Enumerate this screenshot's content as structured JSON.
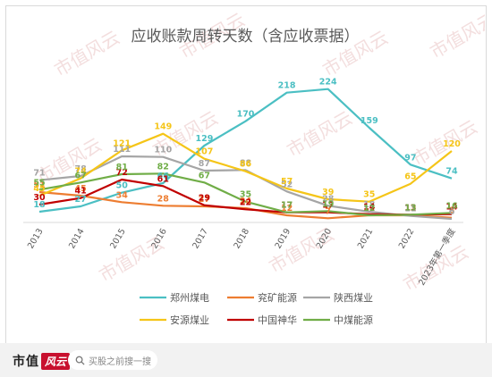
{
  "chart_data": {
    "type": "line",
    "title": "应收账款周转天数（含应收票据）",
    "categories": [
      "2013",
      "2014",
      "2015",
      "2016",
      "2017",
      "2018",
      "2019",
      "2020",
      "2021",
      "2022",
      "2023年第一季度"
    ],
    "ylim": [
      0,
      240
    ],
    "grid": false,
    "legend_position": "bottom",
    "series": [
      {
        "name": "郑州煤电",
        "color": "#4bbfc3",
        "values": [
          18,
          27,
          50,
          66,
          129,
          170,
          218,
          224,
          159,
          97,
          74
        ]
      },
      {
        "name": "兖矿能源",
        "color": "#ed7d31",
        "values": [
          51,
          45,
          34,
          28,
          27,
          24,
          12,
          7,
          12,
          12,
          8
        ]
      },
      {
        "name": "陕西煤业",
        "color": "#a5a5a5",
        "values": [
          71,
          78,
          111,
          110,
          87,
          88,
          52,
          28,
          18,
          11,
          6
        ]
      },
      {
        "name": "安源煤业",
        "color": "#f5c518",
        "values": [
          45,
          74,
          121,
          149,
          107,
          86,
          57,
          39,
          35,
          65,
          120
        ]
      },
      {
        "name": "中国神华",
        "color": "#c00000",
        "values": [
          30,
          41,
          72,
          61,
          29,
          22,
          17,
          17,
          14,
          13,
          14
        ]
      },
      {
        "name": "中煤能源",
        "color": "#70ad47",
        "values": [
          55,
          67,
          81,
          82,
          67,
          35,
          17,
          19,
          12,
          13,
          16
        ]
      }
    ]
  },
  "footer": {
    "brand_text": "市值",
    "brand_badge": "风云",
    "search_icon": "search-icon",
    "search_placeholder": "买股之前搜一搜"
  },
  "watermark": "市值风云"
}
